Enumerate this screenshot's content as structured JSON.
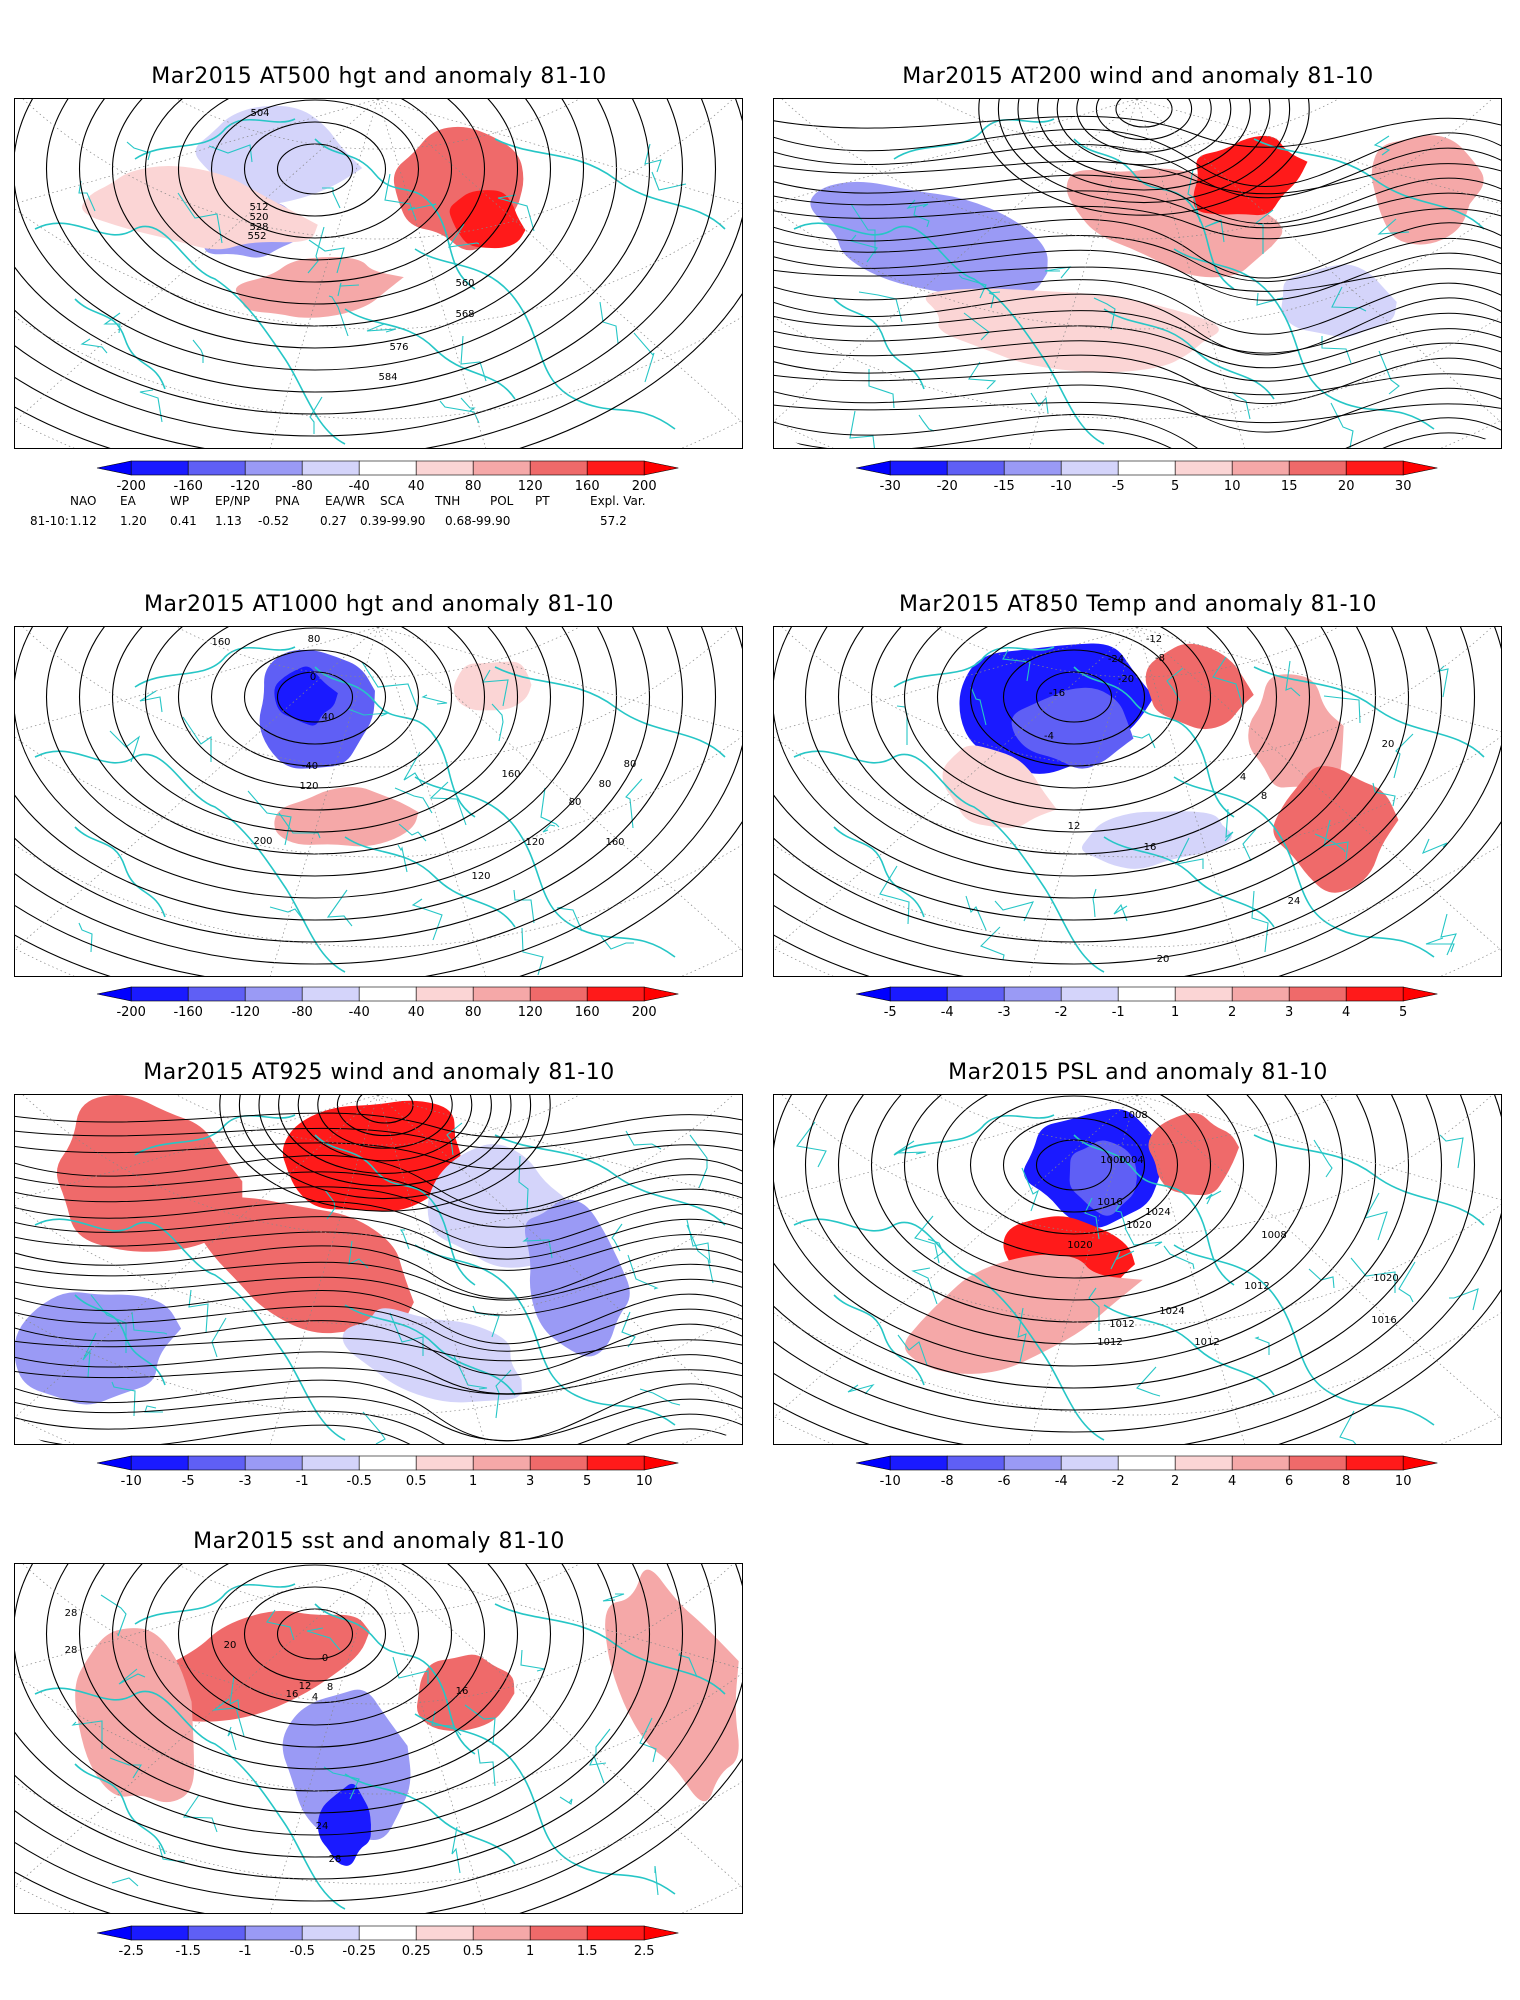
{
  "panels": [
    {
      "id": "p500",
      "title": "Mar2015 AT500 hgt and anomaly 81-10",
      "legend": [
        "-200",
        "-160",
        "-120",
        "-80",
        "-40",
        "40",
        "80",
        "120",
        "160",
        "200"
      ],
      "contour_labels": [
        "504",
        "512",
        "520",
        "528",
        "552",
        "560",
        "568",
        "576",
        "584"
      ]
    },
    {
      "id": "p200",
      "title": "Mar2015 AT200 wind and anomaly 81-10",
      "legend": [
        "-30",
        "-20",
        "-15",
        "-10",
        "-5",
        "5",
        "10",
        "15",
        "20",
        "30"
      ],
      "contour_labels": []
    },
    {
      "id": "p1000",
      "title": "Mar2015 AT1000 hgt and anomaly 81-10",
      "legend": [
        "-200",
        "-160",
        "-120",
        "-80",
        "-40",
        "40",
        "80",
        "120",
        "160",
        "200"
      ],
      "contour_labels": [
        "160",
        "80",
        "0",
        "40",
        "-40",
        "120",
        "200",
        "160",
        "120",
        "160",
        "120",
        "80",
        "80",
        "80"
      ]
    },
    {
      "id": "p850",
      "title": "Mar2015 AT850 Temp and anomaly 81-10",
      "legend": [
        "-5",
        "-4",
        "-3",
        "-2",
        "-1",
        "1",
        "2",
        "3",
        "4",
        "5"
      ],
      "contour_labels": [
        "-12",
        "-8",
        "-24",
        "-20",
        "-16",
        "-4",
        "4",
        "20",
        "8",
        "12",
        "16",
        "24",
        "20"
      ]
    },
    {
      "id": "p925",
      "title": "Mar2015 AT925 wind and anomaly 81-10",
      "legend": [
        "-10",
        "-5",
        "-3",
        "-1",
        "-0.5",
        "0.5",
        "1",
        "3",
        "5",
        "10"
      ],
      "contour_labels": []
    },
    {
      "id": "psl",
      "title": "Mar2015 PSL and anomaly 81-10",
      "legend": [
        "-10",
        "-8",
        "-6",
        "-4",
        "-2",
        "2",
        "4",
        "6",
        "8",
        "10"
      ],
      "contour_labels": [
        "1008",
        "1004",
        "1000",
        "1016",
        "1024",
        "1020",
        "1020",
        "1024",
        "1012",
        "1008",
        "1012",
        "1020",
        "1016",
        "1012",
        "1012"
      ]
    },
    {
      "id": "sst",
      "title": "Mar2015 sst and anomaly 81-10",
      "legend": [
        "-2.5",
        "-1.5",
        "-1",
        "-0.5",
        "-0.25",
        "0.25",
        "0.5",
        "1",
        "1.5",
        "2.5"
      ],
      "contour_labels": [
        "28",
        "28",
        "20",
        "16",
        "12",
        "8",
        "4",
        "0",
        "24",
        "28",
        "16"
      ]
    }
  ],
  "indices": {
    "headers": [
      "NAO",
      "EA",
      "WP",
      "EP/NP",
      "PNA",
      "EA/WR",
      "SCA",
      "TNH",
      "POL",
      "PT",
      "Expl. Var."
    ],
    "row_label": "81-10:",
    "values": [
      "1.12",
      "1.20",
      "0.41",
      "1.13",
      "-0.52",
      "0.27",
      "0.39-99.90",
      "0.68-99.90",
      "57.2"
    ]
  },
  "colors": {
    "blue_strong": "#1a1aff",
    "blue_mid": "#5f5ff5",
    "blue_light": "#9a9af5",
    "blue_pale": "#d4d4fa",
    "red_pale": "#fbd5d5",
    "red_light": "#f5a8a8",
    "red_mid": "#ef6a6a",
    "red_strong": "#ff1a1a",
    "coast": "#26c6c6"
  }
}
